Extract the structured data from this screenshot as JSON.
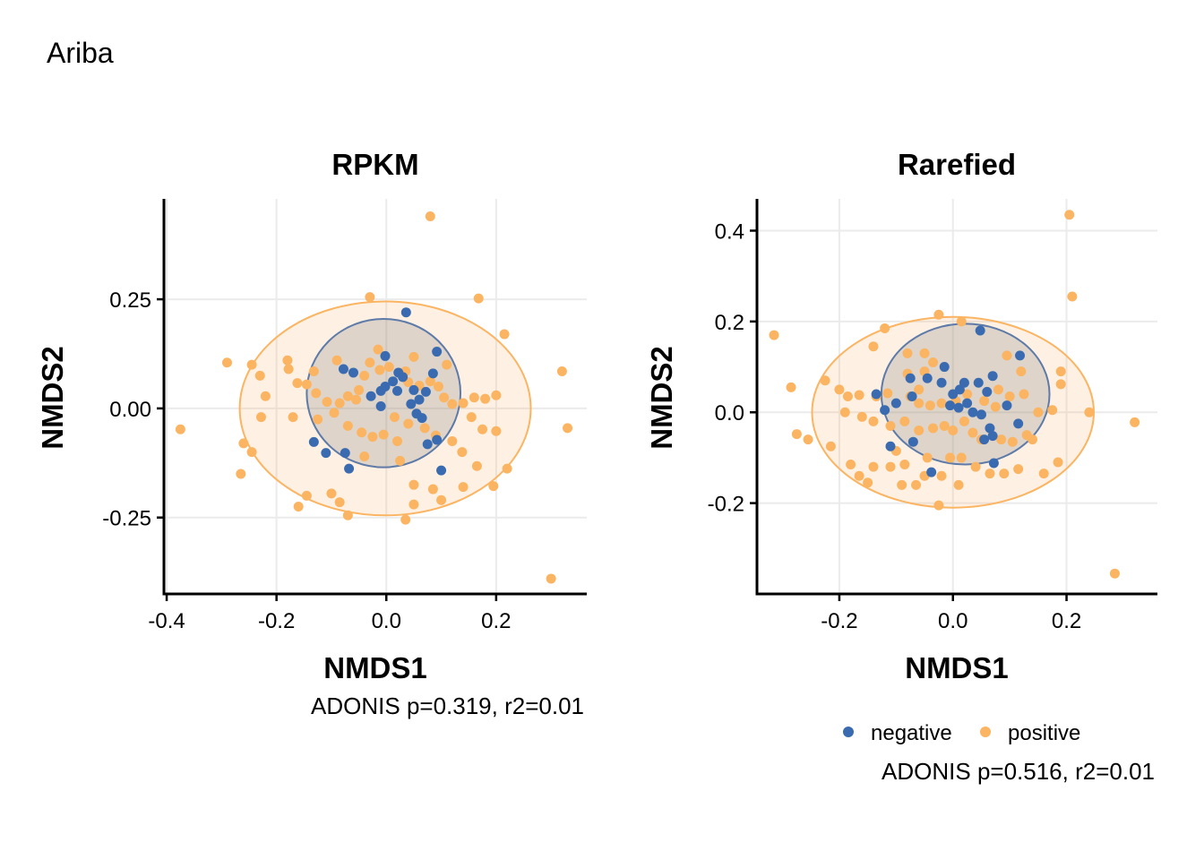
{
  "figure_title": "Ariba",
  "colors": {
    "negative": "#3a6bb0",
    "positive": "#fbb462"
  },
  "legend": {
    "items": [
      {
        "label": "negative",
        "group": "negative"
      },
      {
        "label": "positive",
        "group": "positive"
      }
    ]
  },
  "chart_data": [
    {
      "type": "scatter",
      "title": "RPKM",
      "xlabel": "NMDS1",
      "ylabel": "NMDS2",
      "xlim": [
        -0.405,
        0.365
      ],
      "ylim": [
        -0.425,
        0.48
      ],
      "xticks": [
        -0.4,
        -0.2,
        0.0,
        0.2
      ],
      "xtick_labels": [
        "-0.4",
        "-0.2",
        "0.0",
        "0.2"
      ],
      "yticks": [
        -0.25,
        0.0,
        0.25
      ],
      "ytick_labels": [
        "-0.25",
        "0.00",
        "0.25"
      ],
      "grid": true,
      "caption": "ADONIS p=0.319, r2=0.01",
      "ellipses": [
        {
          "group": "positive",
          "cx": -0.002,
          "cy": 0.0,
          "rx": 0.265,
          "ry": 0.245
        },
        {
          "group": "negative",
          "cx": -0.005,
          "cy": 0.035,
          "rx": 0.14,
          "ry": 0.17
        }
      ],
      "series": [
        {
          "name": "negative",
          "points": [
            [
              0.036,
              0.22
            ],
            [
              0.092,
              0.13
            ],
            [
              -0.078,
              0.09
            ],
            [
              -0.002,
              0.05
            ],
            [
              -0.028,
              0.028
            ],
            [
              -0.01,
              0.04
            ],
            [
              0.022,
              0.082
            ],
            [
              0.03,
              0.072
            ],
            [
              0.06,
              0.02
            ],
            [
              0.085,
              0.08
            ],
            [
              0.012,
              0.062
            ],
            [
              0.05,
              0.042
            ],
            [
              -0.01,
              0.005
            ],
            [
              -0.06,
              0.082
            ],
            [
              -0.002,
              0.12
            ],
            [
              0.055,
              -0.012
            ],
            [
              0.065,
              -0.022
            ],
            [
              0.075,
              -0.082
            ],
            [
              0.092,
              -0.072
            ],
            [
              -0.132,
              -0.077
            ],
            [
              -0.075,
              -0.102
            ],
            [
              -0.11,
              -0.102
            ],
            [
              -0.068,
              -0.138
            ],
            [
              0.1,
              -0.142
            ],
            [
              0.02,
              0.04
            ],
            [
              0.045,
              0.01
            ],
            [
              0.072,
              0.038
            ]
          ]
        },
        {
          "name": "positive",
          "points": [
            [
              0.08,
              0.44
            ],
            [
              -0.03,
              0.255
            ],
            [
              0.168,
              0.252
            ],
            [
              -0.29,
              0.105
            ],
            [
              -0.245,
              0.1
            ],
            [
              -0.23,
              0.075
            ],
            [
              -0.178,
              0.09
            ],
            [
              -0.132,
              0.085
            ],
            [
              -0.145,
              0.055
            ],
            [
              -0.162,
              0.058
            ],
            [
              -0.128,
              0.035
            ],
            [
              -0.108,
              0.015
            ],
            [
              -0.085,
              0.012
            ],
            [
              -0.07,
              0.028
            ],
            [
              -0.05,
              0.042
            ],
            [
              -0.04,
              0.075
            ],
            [
              -0.03,
              0.105
            ],
            [
              -0.012,
              0.088
            ],
            [
              0.005,
              0.095
            ],
            [
              0.035,
              0.085
            ],
            [
              0.04,
              0.06
            ],
            [
              0.06,
              0.052
            ],
            [
              0.08,
              0.062
            ],
            [
              0.095,
              0.05
            ],
            [
              0.105,
              0.025
            ],
            [
              0.12,
              0.01
            ],
            [
              0.14,
              0.012
            ],
            [
              0.16,
              0.025
            ],
            [
              0.18,
              0.022
            ],
            [
              0.2,
              0.03
            ],
            [
              0.215,
              0.17
            ],
            [
              0.32,
              0.085
            ],
            [
              0.33,
              -0.045
            ],
            [
              -0.375,
              -0.048
            ],
            [
              -0.26,
              -0.08
            ],
            [
              -0.245,
              -0.1
            ],
            [
              -0.265,
              -0.15
            ],
            [
              -0.22,
              0.028
            ],
            [
              -0.228,
              -0.02
            ],
            [
              -0.17,
              -0.02
            ],
            [
              -0.125,
              -0.025
            ],
            [
              -0.095,
              -0.01
            ],
            [
              -0.07,
              -0.04
            ],
            [
              -0.045,
              -0.055
            ],
            [
              -0.025,
              -0.065
            ],
            [
              -0.005,
              -0.06
            ],
            [
              0.02,
              -0.075
            ],
            [
              0.04,
              -0.035
            ],
            [
              0.07,
              -0.045
            ],
            [
              0.09,
              -0.062
            ],
            [
              0.12,
              -0.075
            ],
            [
              0.155,
              -0.02
            ],
            [
              0.175,
              -0.048
            ],
            [
              0.2,
              -0.052
            ],
            [
              0.165,
              -0.132
            ],
            [
              0.22,
              -0.138
            ],
            [
              0.195,
              -0.178
            ],
            [
              -0.145,
              -0.2
            ],
            [
              -0.16,
              -0.225
            ],
            [
              -0.1,
              -0.195
            ],
            [
              -0.085,
              -0.215
            ],
            [
              -0.07,
              -0.245
            ],
            [
              0.035,
              -0.255
            ],
            [
              0.05,
              -0.175
            ],
            [
              0.085,
              -0.185
            ],
            [
              0.14,
              -0.18
            ],
            [
              0.1,
              -0.21
            ],
            [
              0.05,
              -0.22
            ],
            [
              0.3,
              -0.39
            ],
            [
              -0.18,
              0.11
            ],
            [
              -0.09,
              0.11
            ],
            [
              -0.015,
              0.135
            ],
            [
              0.11,
              0.1
            ],
            [
              0.138,
              -0.1
            ],
            [
              0.05,
              0.118
            ],
            [
              -0.055,
              0.02
            ],
            [
              0.015,
              -0.02
            ],
            [
              -0.04,
              -0.11
            ],
            [
              0.025,
              -0.12
            ]
          ]
        }
      ]
    },
    {
      "type": "scatter",
      "title": "Rarefied",
      "xlabel": "NMDS1",
      "ylabel": "NMDS2",
      "xlim": [
        -0.345,
        0.36
      ],
      "ylim": [
        -0.4,
        0.47
      ],
      "xticks": [
        -0.2,
        0.0,
        0.2
      ],
      "xtick_labels": [
        "-0.2",
        "0.0",
        "0.2"
      ],
      "yticks": [
        -0.2,
        0.0,
        0.2,
        0.4
      ],
      "ytick_labels": [
        "-0.2",
        "0.0",
        "0.2",
        "0.4"
      ],
      "grid": true,
      "caption": "ADONIS p=0.516, r2=0.01",
      "ellipses": [
        {
          "group": "positive",
          "cx": 0.0,
          "cy": 0.0,
          "rx": 0.248,
          "ry": 0.21
        },
        {
          "group": "negative",
          "cx": 0.022,
          "cy": 0.04,
          "rx": 0.148,
          "ry": 0.155
        }
      ],
      "series": [
        {
          "name": "negative",
          "points": [
            [
              0.048,
              0.18
            ],
            [
              0.118,
              0.125
            ],
            [
              -0.075,
              0.075
            ],
            [
              -0.045,
              0.075
            ],
            [
              -0.02,
              0.065
            ],
            [
              -0.015,
              0.1
            ],
            [
              0.012,
              0.05
            ],
            [
              0.025,
              0.02
            ],
            [
              0.045,
              0.065
            ],
            [
              0.07,
              0.08
            ],
            [
              0.06,
              0.045
            ],
            [
              -0.135,
              0.04
            ],
            [
              -0.12,
              0.005
            ],
            [
              -0.1,
              0.02
            ],
            [
              -0.072,
              0.035
            ],
            [
              0.0,
              0.04
            ],
            [
              0.01,
              0.01
            ],
            [
              0.035,
              0.0
            ],
            [
              0.05,
              -0.005
            ],
            [
              0.065,
              -0.035
            ],
            [
              0.115,
              -0.025
            ],
            [
              0.07,
              -0.052
            ],
            [
              0.055,
              -0.06
            ],
            [
              0.095,
              0.015
            ],
            [
              -0.11,
              -0.075
            ],
            [
              -0.07,
              -0.065
            ],
            [
              -0.038,
              -0.132
            ],
            [
              0.072,
              -0.112
            ],
            [
              0.02,
              0.065
            ],
            [
              -0.005,
              0.015
            ]
          ]
        },
        {
          "name": "positive",
          "points": [
            [
              0.205,
              0.435
            ],
            [
              0.21,
              0.255
            ],
            [
              -0.315,
              0.17
            ],
            [
              -0.025,
              0.215
            ],
            [
              0.015,
              0.2
            ],
            [
              -0.12,
              0.185
            ],
            [
              -0.14,
              0.145
            ],
            [
              -0.08,
              0.13
            ],
            [
              -0.05,
              0.13
            ],
            [
              -0.035,
              0.11
            ],
            [
              -0.08,
              0.085
            ],
            [
              0.095,
              0.125
            ],
            [
              0.12,
              0.09
            ],
            [
              0.19,
              0.09
            ],
            [
              0.19,
              0.062
            ],
            [
              -0.285,
              0.055
            ],
            [
              -0.225,
              0.07
            ],
            [
              -0.2,
              0.05
            ],
            [
              -0.185,
              0.035
            ],
            [
              -0.165,
              0.038
            ],
            [
              -0.135,
              0.035
            ],
            [
              -0.115,
              0.042
            ],
            [
              -0.075,
              0.035
            ],
            [
              -0.06,
              0.02
            ],
            [
              -0.04,
              0.015
            ],
            [
              -0.02,
              0.02
            ],
            [
              0.005,
              0.025
            ],
            [
              0.025,
              0.04
            ],
            [
              0.055,
              0.025
            ],
            [
              0.075,
              0.012
            ],
            [
              0.1,
              0.035
            ],
            [
              0.125,
              0.04
            ],
            [
              0.15,
              0.0
            ],
            [
              0.175,
              0.005
            ],
            [
              0.24,
              0.0
            ],
            [
              -0.19,
              0.0
            ],
            [
              -0.16,
              -0.01
            ],
            [
              -0.14,
              -0.02
            ],
            [
              -0.11,
              -0.03
            ],
            [
              -0.085,
              -0.02
            ],
            [
              -0.06,
              -0.04
            ],
            [
              -0.035,
              -0.035
            ],
            [
              -0.015,
              -0.03
            ],
            [
              0.0,
              -0.04
            ],
            [
              0.02,
              -0.02
            ],
            [
              0.035,
              -0.045
            ],
            [
              0.05,
              -0.06
            ],
            [
              0.085,
              -0.06
            ],
            [
              0.105,
              -0.065
            ],
            [
              0.13,
              -0.05
            ],
            [
              0.14,
              -0.06
            ],
            [
              -0.275,
              -0.048
            ],
            [
              -0.255,
              -0.06
            ],
            [
              -0.215,
              -0.075
            ],
            [
              -0.1,
              -0.085
            ],
            [
              -0.085,
              -0.115
            ],
            [
              -0.045,
              -0.1
            ],
            [
              -0.005,
              -0.1
            ],
            [
              0.015,
              -0.1
            ],
            [
              0.04,
              -0.12
            ],
            [
              0.065,
              -0.135
            ],
            [
              0.09,
              -0.135
            ],
            [
              0.115,
              -0.125
            ],
            [
              0.16,
              -0.135
            ],
            [
              0.185,
              -0.11
            ],
            [
              -0.18,
              -0.115
            ],
            [
              -0.14,
              -0.12
            ],
            [
              -0.165,
              -0.14
            ],
            [
              -0.15,
              -0.155
            ],
            [
              -0.11,
              -0.12
            ],
            [
              -0.09,
              -0.16
            ],
            [
              -0.05,
              -0.14
            ],
            [
              -0.02,
              -0.14
            ],
            [
              0.01,
              -0.16
            ],
            [
              -0.025,
              -0.205
            ],
            [
              -0.065,
              -0.16
            ],
            [
              0.32,
              -0.022
            ],
            [
              0.285,
              -0.355
            ],
            [
              -0.05,
              0.09
            ],
            [
              0.08,
              0.05
            ],
            [
              -0.06,
              0.05
            ]
          ]
        }
      ]
    }
  ]
}
